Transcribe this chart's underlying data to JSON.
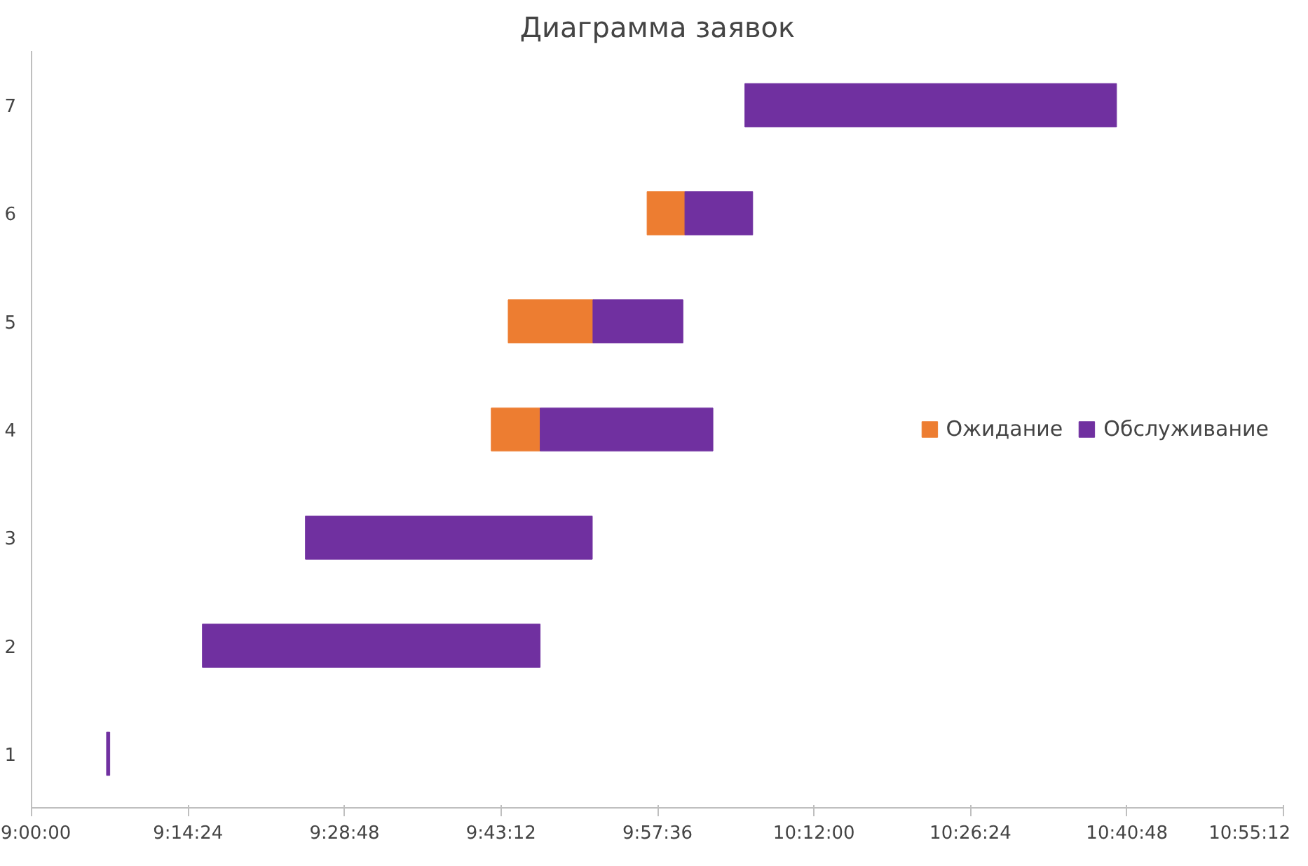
{
  "chart_data": {
    "type": "bar",
    "orientation": "horizontal",
    "title": "Диаграмма заявок",
    "categories": [
      "7",
      "6",
      "5",
      "4",
      "3",
      "2",
      "1"
    ],
    "series": [
      {
        "name": "Ожидание",
        "color": "#ed7d31",
        "base": [
          null,
          9.944,
          9.731,
          9.705,
          null,
          null,
          null
        ],
        "values": [
          null,
          0.058,
          0.13,
          0.075,
          null,
          null,
          null
        ]
      },
      {
        "name": "Обслуживание",
        "color": "#7030a0",
        "base": [
          10.094,
          10.002,
          9.861,
          9.78,
          9.42,
          9.262,
          9.115
        ],
        "values": [
          0.57,
          0.104,
          0.138,
          0.265,
          0.44,
          0.518,
          0.005
        ]
      }
    ],
    "xlim": [
      9.0,
      10.92
    ],
    "xticks": [
      {
        "value": 9.0,
        "label": "9:00:00"
      },
      {
        "value": 9.24,
        "label": "9:14:24"
      },
      {
        "value": 9.48,
        "label": "9:28:48"
      },
      {
        "value": 9.72,
        "label": "9:43:12"
      },
      {
        "value": 9.96,
        "label": "9:57:36"
      },
      {
        "value": 10.2,
        "label": "10:12:00"
      },
      {
        "value": 10.44,
        "label": "10:26:24"
      },
      {
        "value": 10.68,
        "label": "10:40:48"
      },
      {
        "value": 10.92,
        "label": "10:55:12"
      }
    ],
    "legend": "right"
  }
}
